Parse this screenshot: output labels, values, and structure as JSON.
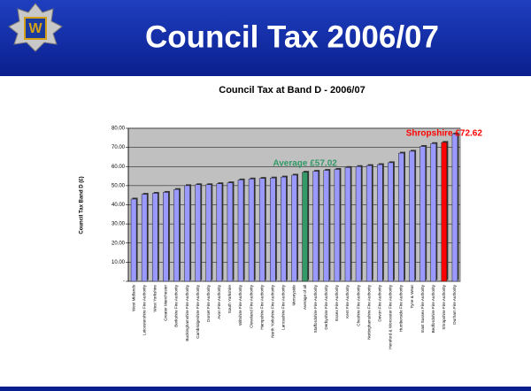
{
  "slide_title": "Council Tax 2006/07",
  "chart_data": {
    "type": "bar",
    "title": "Council Tax at Band D - 2006/07",
    "y_label": "Council Tax Band D (£)",
    "categories": [
      "West Midlands",
      "Leicestershire Fire Authority",
      "West Yorkshire",
      "Greater Manchester",
      "Berkshire Fire Authority",
      "Buckinghamshire Fire Authority",
      "Cambridgeshire Fire Authority",
      "Dorset Fire Authority",
      "Avon Fire Authority",
      "South Yorkshire",
      "Wiltshire Fire Authority",
      "Cleveland Fire Authority",
      "Hampshire Fire Authority",
      "North Yorkshire Fire Authority",
      "Lancashire Fire Authority",
      "Merseyside",
      "Average of all",
      "Staffordshire Fire Authority",
      "Derbyshire Fire Authority",
      "Essex Fire Authority",
      "Kent Fire Authority",
      "Cheshire Fire Authority",
      "Nottinghamshire Fire Authority",
      "Devon Fire Authority",
      "Hereford & Worcester Fire Authority",
      "Humberside Fire Authority",
      "Tyne & Wear",
      "East Sussex Fire Authority",
      "Bedfordshire Fire Authority",
      "Shropshire Fire Authority",
      "Durham Fire Authority"
    ],
    "values": [
      43,
      45.5,
      46,
      46.5,
      48,
      50,
      50.5,
      50.5,
      51,
      51.5,
      53,
      53.5,
      53.8,
      54,
      54.5,
      55.5,
      57.02,
      57.5,
      58,
      58.5,
      59.5,
      60,
      60.5,
      61,
      62,
      67,
      68,
      70.5,
      72,
      72.62,
      77
    ],
    "colors": [
      "#9999ff",
      "#9999ff",
      "#9999ff",
      "#9999ff",
      "#9999ff",
      "#9999ff",
      "#9999ff",
      "#9999ff",
      "#9999ff",
      "#9999ff",
      "#9999ff",
      "#9999ff",
      "#9999ff",
      "#9999ff",
      "#9999ff",
      "#9999ff",
      "#339966",
      "#9999ff",
      "#9999ff",
      "#9999ff",
      "#9999ff",
      "#9999ff",
      "#9999ff",
      "#9999ff",
      "#9999ff",
      "#9999ff",
      "#9999ff",
      "#9999ff",
      "#9999ff",
      "#ff0000",
      "#9999ff"
    ],
    "annotations": [
      {
        "text": "Average £57.02",
        "color": "#339966"
      },
      {
        "text": "Shropshire £72.62",
        "color": "#ff0000"
      }
    ],
    "ylim": [
      0,
      80
    ],
    "yticks": [
      {
        "value": 0,
        "label": "-"
      },
      {
        "value": 10,
        "label": "10.00"
      },
      {
        "value": 20,
        "label": "20.00"
      },
      {
        "value": 30,
        "label": "30.00"
      },
      {
        "value": 40,
        "label": "40.00"
      },
      {
        "value": 50,
        "label": "50.00"
      },
      {
        "value": 60,
        "label": "60.00"
      },
      {
        "value": 70,
        "label": "70.00"
      },
      {
        "value": 80,
        "label": "80.00"
      }
    ],
    "grid": true
  }
}
